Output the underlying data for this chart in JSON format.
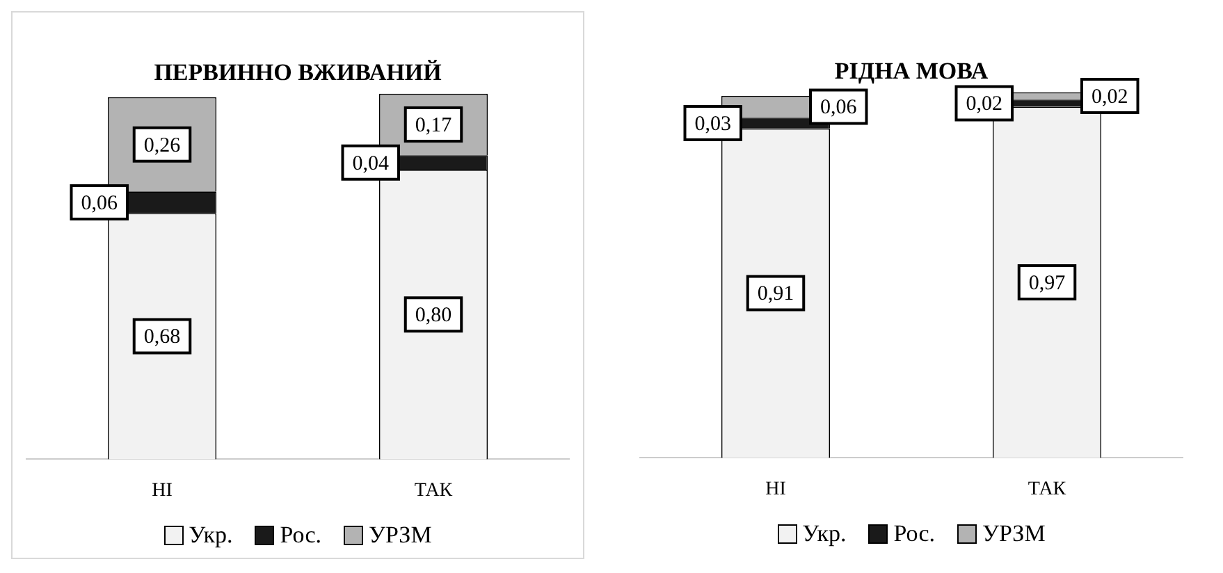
{
  "chart_data": [
    {
      "type": "bar",
      "title": "ПЕРВИННО ВЖИВАНИЙ",
      "categories": [
        "НІ",
        "ТАК"
      ],
      "stacked": true,
      "legend": "bottom",
      "grid": false,
      "series": [
        {
          "name": "Укр.",
          "color": "#f2f2f2",
          "values": [
            0.68,
            0.8
          ],
          "value_labels": [
            "0,68",
            "0,80"
          ]
        },
        {
          "name": "Рос.",
          "color": "#1a1a1a",
          "values": [
            0.06,
            0.04
          ],
          "value_labels": [
            "0,06",
            "0,04"
          ]
        },
        {
          "name": "УРЗМ",
          "color": "#b3b3b3",
          "values": [
            0.26,
            0.17
          ],
          "value_labels": [
            "0,26",
            "0,17"
          ]
        }
      ]
    },
    {
      "type": "bar",
      "title": "РІДНА МОВА",
      "categories": [
        "НІ",
        "ТАК"
      ],
      "stacked": true,
      "legend": "bottom",
      "grid": false,
      "series": [
        {
          "name": "Укр.",
          "color": "#f2f2f2",
          "values": [
            0.91,
            0.97
          ],
          "value_labels": [
            "0,91",
            "0,97"
          ]
        },
        {
          "name": "Рос.",
          "color": "#1a1a1a",
          "values": [
            0.03,
            0.02
          ],
          "value_labels": [
            "0,03",
            "0,02"
          ]
        },
        {
          "name": "УРЗМ",
          "color": "#b3b3b3",
          "values": [
            0.06,
            0.02
          ],
          "value_labels": [
            "0,06",
            "0,02"
          ]
        }
      ]
    }
  ]
}
